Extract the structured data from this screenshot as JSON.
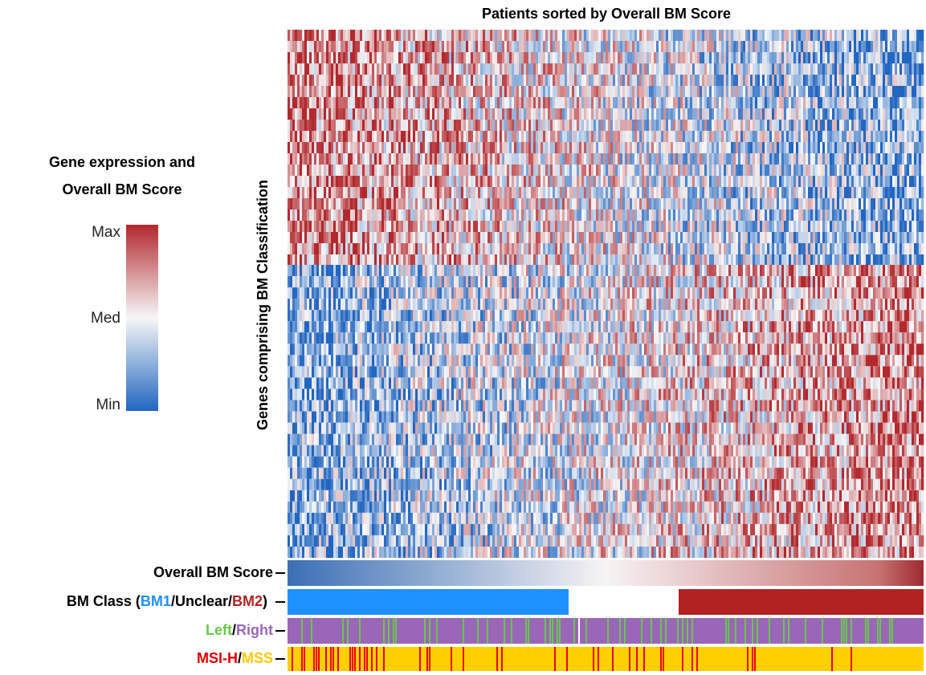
{
  "title": "Patients sorted by Overall BM Score",
  "y_axis_label": "Genes comprising BM Classification",
  "legend": {
    "title_lines": [
      "Gene expression and",
      "Overall BM Score"
    ],
    "labels": [
      "Max",
      "Med",
      "Min"
    ]
  },
  "row_labels": [
    {
      "parts": [
        "Overall BM Score"
      ]
    },
    {
      "parts": [
        "BM Class (",
        "BM1",
        "/Unclear/",
        "BM2",
        ")"
      ]
    },
    {
      "parts": [
        "Left",
        "/",
        "Right"
      ]
    },
    {
      "parts": [
        "MSI-H",
        "/",
        "MSS"
      ]
    }
  ]
}
